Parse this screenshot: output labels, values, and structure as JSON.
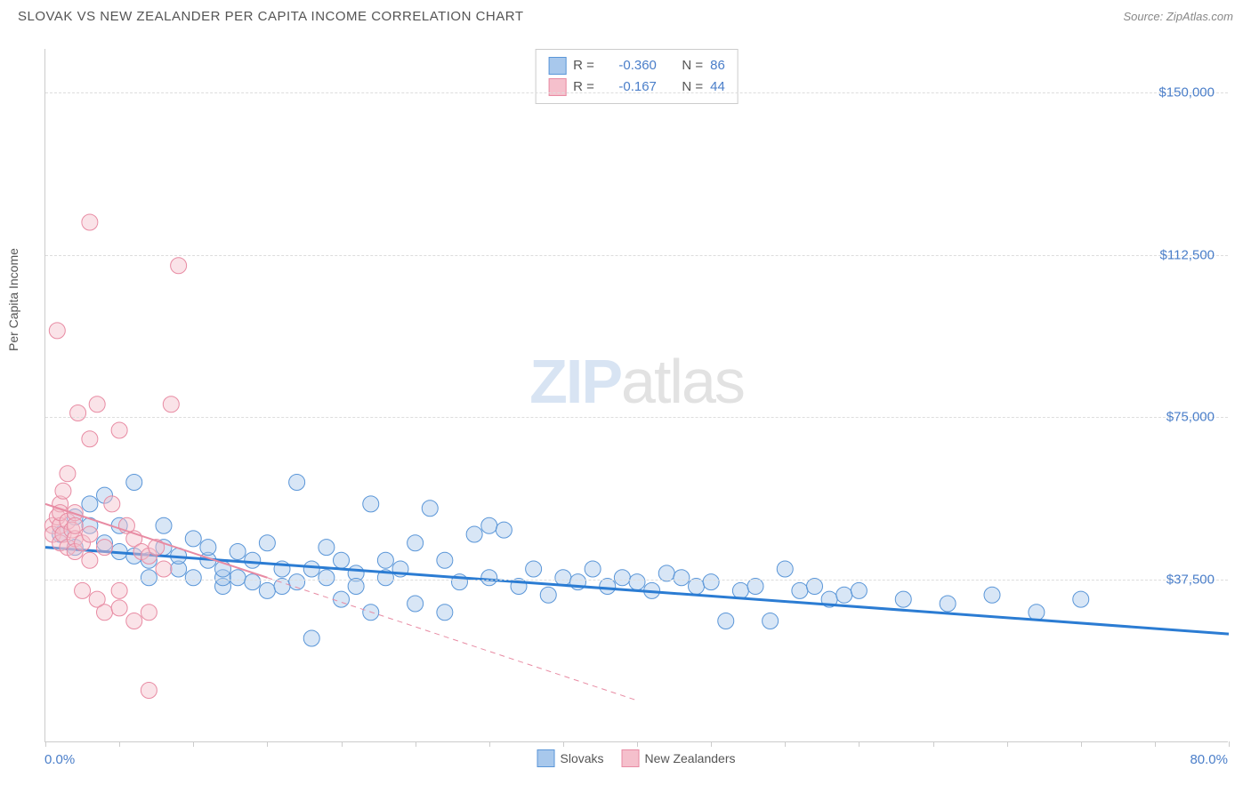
{
  "header": {
    "title": "SLOVAK VS NEW ZEALANDER PER CAPITA INCOME CORRELATION CHART",
    "source_prefix": "Source: ",
    "source_name": "ZipAtlas.com"
  },
  "chart": {
    "type": "scatter",
    "y_axis_title": "Per Capita Income",
    "watermark_zip": "ZIP",
    "watermark_atlas": "atlas",
    "xlim": [
      0,
      80
    ],
    "ylim": [
      0,
      160000
    ],
    "x_axis_left_label": "0.0%",
    "x_axis_right_label": "80.0%",
    "x_tick_step": 5,
    "y_gridlines": [
      37500,
      75000,
      112500,
      150000
    ],
    "y_tick_labels": [
      "$37,500",
      "$75,000",
      "$112,500",
      "$150,000"
    ],
    "background_color": "#ffffff",
    "grid_color": "#dddddd",
    "axis_color": "#cccccc",
    "marker_radius": 9,
    "marker_opacity": 0.45,
    "series": [
      {
        "name": "Slovaks",
        "color_fill": "#a8c8ec",
        "color_stroke": "#5a96d8",
        "R": "-0.360",
        "N": "86",
        "trend": {
          "x1": 0,
          "y1": 45000,
          "x2": 80,
          "y2": 25000,
          "extent_x": 80,
          "stroke": "#2b7cd3",
          "width": 3
        },
        "points": [
          [
            1,
            48000
          ],
          [
            2,
            52000
          ],
          [
            2,
            45000
          ],
          [
            3,
            55000
          ],
          [
            3,
            50000
          ],
          [
            4,
            46000
          ],
          [
            4,
            57000
          ],
          [
            5,
            44000
          ],
          [
            5,
            50000
          ],
          [
            6,
            43000
          ],
          [
            6,
            60000
          ],
          [
            7,
            42000
          ],
          [
            7,
            38000
          ],
          [
            8,
            45000
          ],
          [
            8,
            50000
          ],
          [
            9,
            40000
          ],
          [
            9,
            43000
          ],
          [
            10,
            47000
          ],
          [
            10,
            38000
          ],
          [
            11,
            42000
          ],
          [
            11,
            45000
          ],
          [
            12,
            36000
          ],
          [
            12,
            38000
          ],
          [
            12,
            40000
          ],
          [
            13,
            44000
          ],
          [
            13,
            38000
          ],
          [
            14,
            37000
          ],
          [
            14,
            42000
          ],
          [
            15,
            46000
          ],
          [
            15,
            35000
          ],
          [
            16,
            40000
          ],
          [
            16,
            36000
          ],
          [
            17,
            60000
          ],
          [
            17,
            37000
          ],
          [
            18,
            24000
          ],
          [
            18,
            40000
          ],
          [
            19,
            38000
          ],
          [
            19,
            45000
          ],
          [
            20,
            33000
          ],
          [
            20,
            42000
          ],
          [
            21,
            39000
          ],
          [
            21,
            36000
          ],
          [
            22,
            55000
          ],
          [
            22,
            30000
          ],
          [
            23,
            38000
          ],
          [
            23,
            42000
          ],
          [
            24,
            40000
          ],
          [
            25,
            32000
          ],
          [
            25,
            46000
          ],
          [
            26,
            54000
          ],
          [
            27,
            30000
          ],
          [
            27,
            42000
          ],
          [
            28,
            37000
          ],
          [
            29,
            48000
          ],
          [
            30,
            50000
          ],
          [
            30,
            38000
          ],
          [
            31,
            49000
          ],
          [
            32,
            36000
          ],
          [
            33,
            40000
          ],
          [
            34,
            34000
          ],
          [
            35,
            38000
          ],
          [
            36,
            37000
          ],
          [
            37,
            40000
          ],
          [
            38,
            36000
          ],
          [
            39,
            38000
          ],
          [
            40,
            37000
          ],
          [
            41,
            35000
          ],
          [
            42,
            39000
          ],
          [
            43,
            38000
          ],
          [
            44,
            36000
          ],
          [
            45,
            37000
          ],
          [
            46,
            28000
          ],
          [
            47,
            35000
          ],
          [
            48,
            36000
          ],
          [
            49,
            28000
          ],
          [
            50,
            40000
          ],
          [
            51,
            35000
          ],
          [
            52,
            36000
          ],
          [
            53,
            33000
          ],
          [
            54,
            34000
          ],
          [
            55,
            35000
          ],
          [
            58,
            33000
          ],
          [
            61,
            32000
          ],
          [
            64,
            34000
          ],
          [
            67,
            30000
          ],
          [
            70,
            33000
          ]
        ]
      },
      {
        "name": "New Zealanders",
        "color_fill": "#f5c0cc",
        "color_stroke": "#e88ba3",
        "R": "-0.167",
        "N": "44",
        "trend": {
          "x1": 0,
          "y1": 55000,
          "x2": 15,
          "y2": 38000,
          "extent_x": 40,
          "stroke": "#e88ba3",
          "width": 2
        },
        "points": [
          [
            0.5,
            50000
          ],
          [
            0.5,
            48000
          ],
          [
            0.8,
            52000
          ],
          [
            0.8,
            95000
          ],
          [
            1,
            55000
          ],
          [
            1,
            50000
          ],
          [
            1,
            46000
          ],
          [
            1,
            53000
          ],
          [
            1.2,
            58000
          ],
          [
            1.2,
            48000
          ],
          [
            1.5,
            51000
          ],
          [
            1.5,
            45000
          ],
          [
            1.5,
            62000
          ],
          [
            1.8,
            49000
          ],
          [
            2,
            47000
          ],
          [
            2,
            53000
          ],
          [
            2,
            50000
          ],
          [
            2,
            44000
          ],
          [
            2.2,
            76000
          ],
          [
            2.5,
            46000
          ],
          [
            2.5,
            35000
          ],
          [
            3,
            48000
          ],
          [
            3,
            120000
          ],
          [
            3,
            42000
          ],
          [
            3,
            70000
          ],
          [
            3.5,
            78000
          ],
          [
            3.5,
            33000
          ],
          [
            4,
            45000
          ],
          [
            4,
            30000
          ],
          [
            4.5,
            55000
          ],
          [
            5,
            72000
          ],
          [
            5,
            35000
          ],
          [
            5,
            31000
          ],
          [
            5.5,
            50000
          ],
          [
            6,
            47000
          ],
          [
            6,
            28000
          ],
          [
            6.5,
            44000
          ],
          [
            7,
            43000
          ],
          [
            7,
            30000
          ],
          [
            7,
            12000
          ],
          [
            7.5,
            45000
          ],
          [
            8,
            40000
          ],
          [
            8.5,
            78000
          ],
          [
            9,
            110000
          ]
        ]
      }
    ],
    "legend_labels": {
      "R": "R =",
      "N": "N ="
    },
    "bottom_legend": [
      {
        "label": "Slovaks",
        "fill": "#a8c8ec",
        "stroke": "#5a96d8"
      },
      {
        "label": "New Zealanders",
        "fill": "#f5c0cc",
        "stroke": "#e88ba3"
      }
    ]
  }
}
